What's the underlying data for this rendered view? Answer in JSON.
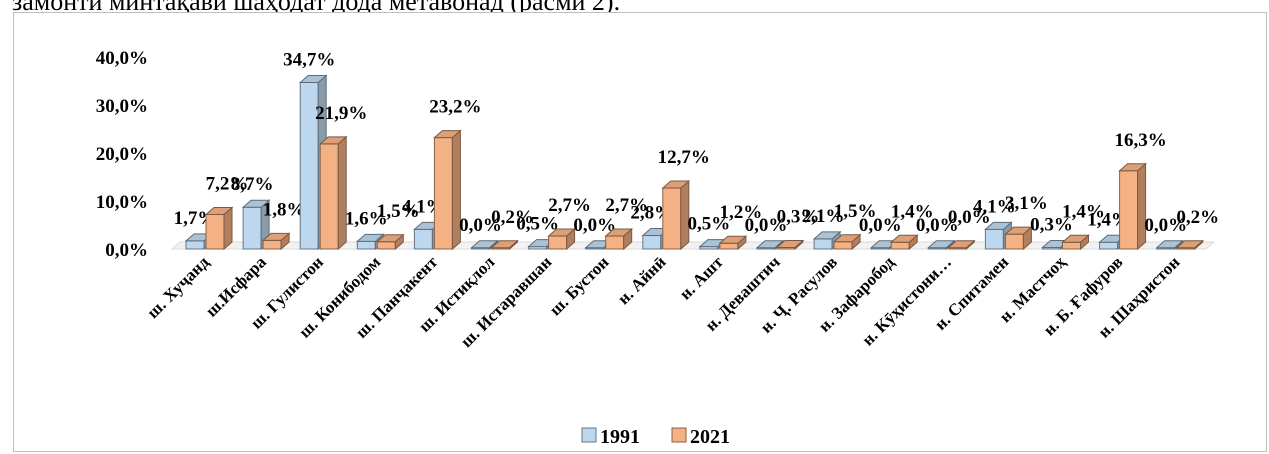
{
  "page": {
    "top_text": "замонти минтақави шаҳодат дода метавонад (расми 2)."
  },
  "chart_data": {
    "type": "bar",
    "title": "",
    "xlabel": "",
    "ylabel": "",
    "ylim": [
      0,
      40
    ],
    "yticks": [
      "0,0%",
      "10,0%",
      "20,0%",
      "30,0%",
      "40,0%"
    ],
    "categories": [
      "ш. Хуҷанд",
      "ш.Исфара",
      "ш. Гулистон",
      "ш. Конибодом",
      "ш. Панҷакент",
      "ш. Истиқлол",
      "ш. Истаравшан",
      "ш. Бустон",
      "н. Айнӣ",
      "н. Ашт",
      "н. Деваштич",
      "н. Ҷ. Расулов",
      "н. Зафаробод",
      "н. Кӯҳистони…",
      "н. Спитамен",
      "н. Мастчоҳ",
      "н. Б. Ғафуров",
      "н. Шаҳристон"
    ],
    "series": [
      {
        "name": "1991",
        "color": "#bdd7ee",
        "values": [
          1.7,
          8.7,
          34.7,
          1.6,
          4.1,
          0.0,
          0.5,
          0.0,
          2.8,
          0.5,
          0.0,
          2.1,
          0.0,
          0.0,
          4.1,
          0.3,
          1.4,
          0.0
        ],
        "labels": [
          "1,7%",
          "8,7%",
          "34,7%",
          "1,6%",
          "4,1%",
          "0,0%",
          "0,5%",
          "0,0%",
          "2,8%",
          "0,5%",
          "0,0%",
          "2,1%",
          "0,0%",
          "0,0%",
          "4,1%",
          "0,3%",
          "1,4%",
          "0,0%"
        ]
      },
      {
        "name": "2021",
        "color": "#f4b183",
        "values": [
          7.2,
          1.8,
          21.9,
          1.5,
          23.2,
          0.2,
          2.7,
          2.7,
          12.7,
          1.2,
          0.3,
          1.5,
          1.4,
          0.0,
          3.1,
          1.4,
          16.3,
          0.2
        ],
        "labels": [
          "7,2%",
          "1,8%",
          "21,9%",
          "1,5%",
          "23,2%",
          "0,2%",
          "2,7%",
          "2,7%",
          "12,7%",
          "1,2%",
          "0,3%",
          "1,5%",
          "1,4%",
          "0,0%",
          "3,1%",
          "1,4%",
          "16,3%",
          "0,2%"
        ]
      }
    ],
    "legend_position": "bottom",
    "grid": false,
    "style": "3d-clustered-column"
  }
}
